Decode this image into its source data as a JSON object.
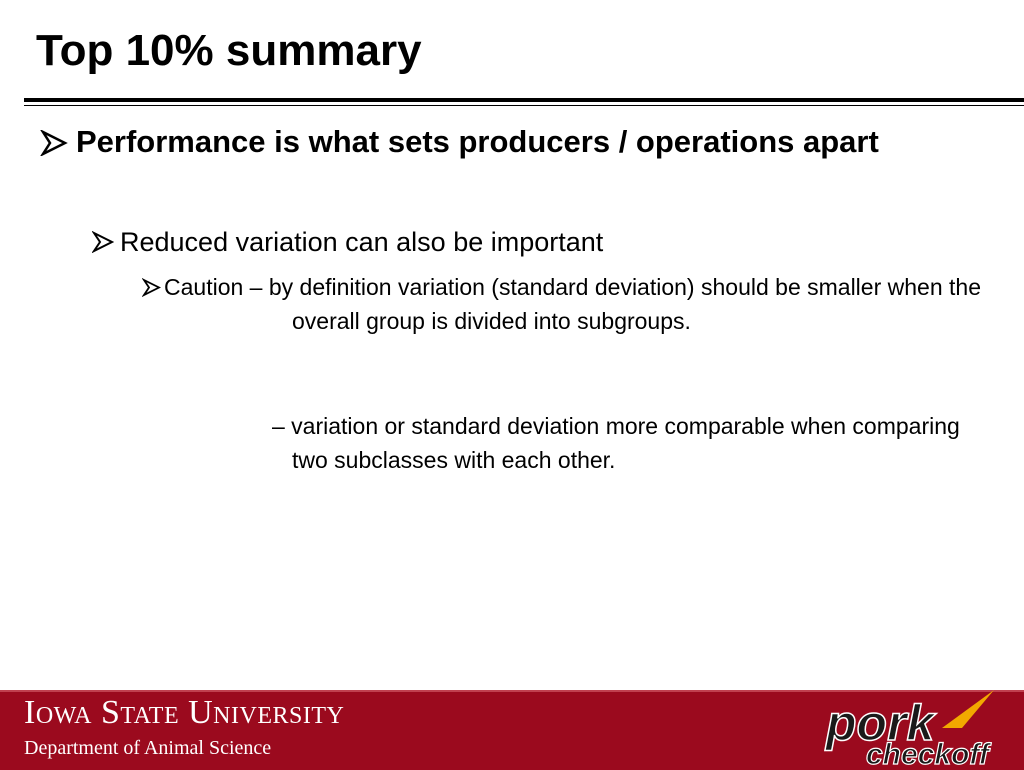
{
  "header": {
    "title": "Top 10% summary"
  },
  "bullets": [
    {
      "level": 1,
      "text": "Performance is what sets producers / operations apart"
    },
    {
      "level": 2,
      "text": "Reduced variation can also be important"
    },
    {
      "level": 3,
      "text": "Caution – by definition variation (standard deviation) should be smaller when the overall group is divided into subgroups."
    },
    {
      "level": 3,
      "text": "– variation or standard deviation more comparable when comparing two subclasses with each other."
    }
  ],
  "footer": {
    "university": "Iowa State University",
    "department": "Department of Animal Science",
    "logo": {
      "top": "pork",
      "bottom": "checkoff"
    }
  }
}
